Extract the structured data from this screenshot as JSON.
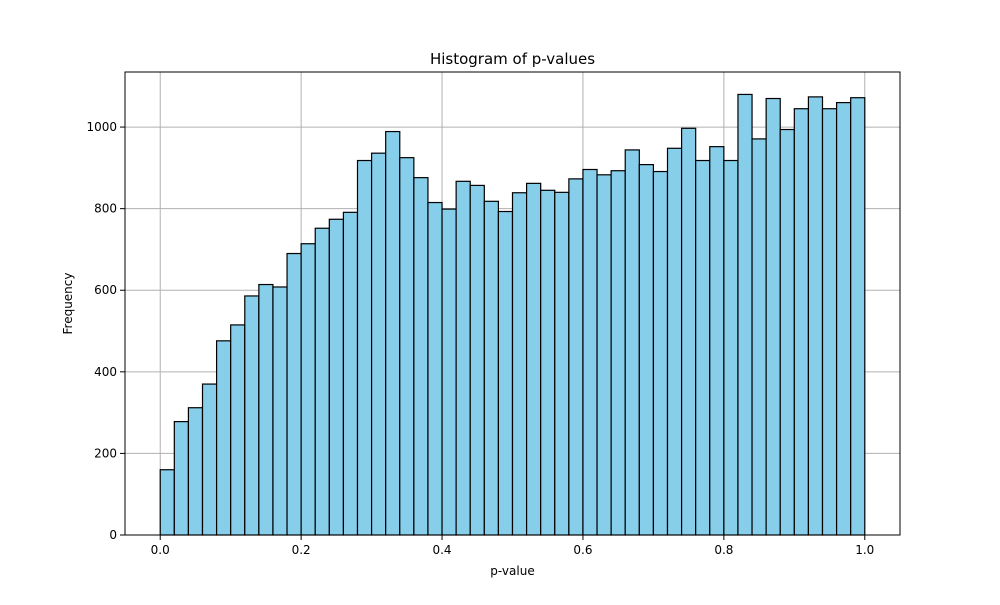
{
  "chart_data": {
    "type": "bar",
    "title": "Histogram of p-values",
    "xlabel": "p-value",
    "ylabel": "Frequency",
    "xlim": [
      -0.05,
      1.05
    ],
    "ylim": [
      0,
      1135
    ],
    "xticks": [
      0.0,
      0.2,
      0.4,
      0.6,
      0.8,
      1.0
    ],
    "xtick_labels": [
      "0.0",
      "0.2",
      "0.4",
      "0.6",
      "0.8",
      "1.0"
    ],
    "yticks": [
      0,
      200,
      400,
      600,
      800,
      1000
    ],
    "ytick_labels": [
      "0",
      "200",
      "400",
      "600",
      "800",
      "1000"
    ],
    "grid": true,
    "bin_edges": [
      0.0,
      0.02,
      0.04,
      0.06,
      0.08,
      0.1,
      0.12,
      0.14,
      0.16,
      0.18,
      0.2,
      0.22,
      0.24,
      0.26,
      0.28,
      0.3,
      0.32,
      0.34,
      0.36,
      0.38,
      0.4,
      0.42,
      0.44,
      0.46,
      0.48,
      0.5,
      0.52,
      0.54,
      0.56,
      0.58,
      0.6,
      0.62,
      0.64,
      0.66,
      0.68,
      0.7,
      0.72,
      0.74,
      0.76,
      0.78,
      0.8,
      0.82,
      0.84,
      0.86,
      0.88,
      0.9,
      0.92,
      0.94,
      0.96,
      0.98,
      1.0
    ],
    "values": [
      160,
      278,
      312,
      370,
      476,
      515,
      586,
      614,
      608,
      690,
      714,
      752,
      774,
      791,
      918,
      936,
      989,
      925,
      876,
      815,
      799,
      867,
      857,
      818,
      793,
      839,
      862,
      845,
      840,
      873,
      896,
      883,
      893,
      944,
      908,
      891,
      948,
      997,
      918,
      952,
      918,
      1080,
      971,
      1070,
      994,
      1045,
      1074,
      1045,
      1060,
      1072
    ],
    "bar_color": "#87ceeb",
    "edge_color": "#000000",
    "grid_color": "#b0b0b0"
  }
}
